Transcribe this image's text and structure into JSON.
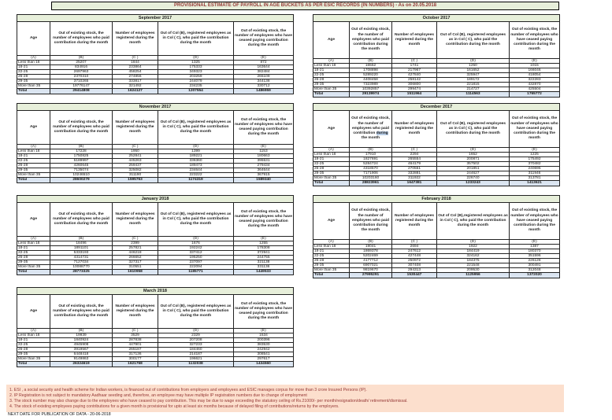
{
  "title": "PROVISIONAL ESTIMATE OF PAYROLL IN AGE BUCKETS AS PER ESIC RECORDS (IN NUMBERS) - As on 20.05.2018",
  "colors": {
    "title_bg": "#e7efda",
    "title_text": "#943634",
    "month_header_bg": "#e7efda",
    "total_row_bg": "#dbe5f1",
    "notes_bg": "#fcdfcd",
    "notes_text": "#953735",
    "selection_highlight": "#b8cce4"
  },
  "tables": [
    {
      "month": "September 2017",
      "headers": [
        "Age",
        "Out of existing stock, the number of employees who paid contribution during the month",
        "Number of employees registered during the month",
        "Out of Col (B), registered employees as in Col ( C), who paid the contribution during the month",
        "Out of existing stock, the number of employees who have ceased paying contribution during the month"
      ],
      "letters": [
        "(A)",
        "(B)",
        "(C )",
        "(D)",
        "(E)"
      ],
      "rows": [
        [
          "Less than 18",
          "25207",
          "1844",
          "1325",
          "872"
        ],
        [
          "18-21",
          "834916",
          "233864",
          "175333",
          "163644"
        ],
        [
          "22-25",
          "2697963",
          "458254",
          "349323",
          "382484"
        ],
        [
          "26-28",
          "2370310",
          "274856",
          "203259",
          "265109"
        ],
        [
          "29-35",
          "3710265",
          "333817",
          "244079",
          "344138"
        ],
        [
          "More than 35",
          "19776147",
          "321492",
          "234235",
          "330712"
        ]
      ],
      "total": [
        "Total",
        "29414808",
        "1624127",
        "1207554",
        "1486959"
      ]
    },
    {
      "month": "October 2017",
      "headers": [
        "Age",
        "Out of existing stock, the number of employees who paid contribution during the month",
        "Number of employees registered during the month",
        "Out of Col (B), registered employees as in Col ( C), who paid the contribution during the month",
        "Out of existing stock, the number of employees who have ceased paying contribution during the month"
      ],
      "letters": [
        "(A)",
        "(B)",
        "(C )",
        "(D)",
        "(E)"
      ],
      "rows": [
        [
          "Less than 18",
          "16552",
          "1741",
          "1250",
          "1015"
        ],
        [
          "18-21",
          "1708898",
          "217967",
          "161652",
          "166046"
        ],
        [
          "22-25",
          "5289220",
          "427840",
          "325947",
          "418054"
        ],
        [
          "26-28",
          "4408458",
          "258142",
          "189172",
          "322283"
        ],
        [
          "29-35",
          "7323989",
          "306800",
          "221815",
          "432870"
        ],
        [
          "More than 35",
          "10392857",
          "299474",
          "214727",
          "425504"
        ]
      ],
      "total": [
        "Total",
        "29139974",
        "1511964",
        "1114563",
        "1765772"
      ]
    },
    {
      "month": "November 2017",
      "headers": [
        "Age",
        "Out of existing stock, the number of employees who paid contribution during the month",
        "Number of employees registered during the month",
        "Out of Col (B), registered employees as in Col ( C), who paid the contribution during the month",
        "Out of existing stock, the number of employees who have ceased paying contribution during the month"
      ],
      "letters": [
        "(A)",
        "(B)",
        "(C )",
        "(D)",
        "(E)"
      ],
      "rows": [
        [
          "Less than 18",
          "17228",
          "1950",
          "1399",
          "1153"
        ],
        [
          "18-21",
          "1750825",
          "252841",
          "189221",
          "180663"
        ],
        [
          "22-25",
          "5189997",
          "445263",
          "336360",
          "395531"
        ],
        [
          "26-28",
          "4260645",
          "259437",
          "189473",
          "279434"
        ],
        [
          "29-35",
          "7135074",
          "325082",
          "234644",
          "364644"
        ],
        [
          "More than 35",
          "10246510",
          "311190",
          "223222",
          "367915"
        ]
      ],
      "total": [
        "Total",
        "28600279",
        "1595763",
        "1174319",
        "1589340"
      ]
    },
    {
      "month": "December 2017",
      "headers": [
        "Age",
        "Out of existing stock, the number of employees who paid contribution during the month",
        "Number of employees registered during the month",
        "Out of Col (B), registered employees as in Col ( C), who paid the contribution during the month",
        "Out of existing stock, the number of employees who have ceased paying contribution during the month"
      ],
      "header_b_parts": {
        "pre": "Out of existing stock, the number of employees who paid contribution ",
        "highlight": "during",
        "post": " the month"
      },
      "letters": [
        "(A)",
        "(B)",
        "(C )",
        "(D)",
        "(E)"
      ],
      "rows": [
        [
          "Less than 18",
          "17910",
          "2294",
          "1652",
          "1225"
        ],
        [
          "18-21",
          "1827691",
          "265554",
          "200871",
          "175492"
        ],
        [
          "22-25",
          "5284724",
          "464179",
          "357502",
          "370482"
        ],
        [
          "26-28",
          "4318570",
          "270551",
          "201851",
          "240695"
        ],
        [
          "29-35",
          "7171906",
          "332881",
          "244627",
          "311946"
        ],
        [
          "More than 35",
          "10203160",
          "311922",
          "226740",
          "313781"
        ]
      ],
      "total": [
        "Total",
        "28823961",
        "1647381",
        "1233243",
        "1413621"
      ]
    },
    {
      "month": "January 2018",
      "headers": [
        "Age",
        "Out of existing stock, the number of employees who paid contribution during the month",
        "Number of employees registered during the month",
        "Out of Col (B), registered employees as in Col ( C), who paid the contribution during the month",
        "Out of existing stock, the number of employees who have ceased paying contribution during the month"
      ],
      "letters": [
        "(A)",
        "(B)",
        "(C )",
        "(D)",
        "(E)"
      ],
      "rows": [
        [
          "Less than 18",
          "18496",
          "2399",
          "1676",
          "1255"
        ],
        [
          "18-21",
          "1891101",
          "257821",
          "192242",
          "178308"
        ],
        [
          "22-25",
          "5333193",
          "446218",
          "337412",
          "372941"
        ],
        [
          "26-28",
          "4314731",
          "266652",
          "195250",
          "244755"
        ],
        [
          "29-35",
          "7127034",
          "327317",
          "237097",
          "321138"
        ],
        [
          "More than 35",
          "10088770",
          "310551",
          "222094",
          "331136"
        ]
      ],
      "total": [
        "Total",
        "28773325",
        "1610958",
        "1185771",
        "1449533"
      ]
    },
    {
      "month": "February 2018",
      "headers": [
        "Age",
        "Out of existing stock, the number of employees who paid contribution during the month",
        "Number of employees registered during the month",
        "Out of Col (B),registered employees as in Col ( C), who paid the contribution during the month",
        "Out of existing stock, the number of employees who have ceased paying contribution during the month"
      ],
      "letters": [
        "(A)",
        "(B)",
        "(C )",
        "(D)",
        "(E)"
      ],
      "rows": [
        [
          "Less than 18",
          "19041",
          "2694",
          "1922",
          "1387"
        ],
        [
          "18-21",
          "1869378",
          "247612",
          "184419",
          "180370"
        ],
        [
          "22-25",
          "5202469",
          "427448",
          "324162",
          "351596"
        ],
        [
          "26-28",
          "4177712",
          "250972",
          "184375",
          "226128"
        ],
        [
          "29-35",
          "6907021",
          "307408",
          "221548",
          "300491"
        ],
        [
          "More than 35",
          "9819670",
          "294313",
          "209530",
          "312048"
        ]
      ],
      "total": [
        "Total",
        "27995291",
        "1530447",
        "1125956",
        "1372020"
      ]
    },
    {
      "month": "March 2018",
      "headers": [
        "Age",
        "Out of existing stock, the number of employees who paid contribution during the month",
        "Number of employees registered during the month",
        "Out of Col (B), registered employees as in Col ( C), who paid the contribution during the month",
        "Out of existing stock, the number of employees who have ceased paying contribution during the month"
      ],
      "letters": [
        "(A)",
        "(B)",
        "(C )",
        "(D)",
        "(E)"
      ],
      "rows": [
        [
          "Less than 18",
          "19939",
          "3529",
          "2329",
          "1534"
        ],
        [
          "18-21",
          "1840924",
          "287838",
          "207208",
          "200396"
        ],
        [
          "22-25",
          "4945908",
          "447901",
          "327233",
          "383530"
        ],
        [
          "26-28",
          "3919567",
          "265187",
          "184460",
          "242942"
        ],
        [
          "29-35",
          "6448418",
          "317136",
          "214187",
          "308541"
        ],
        [
          "More than 35",
          "9149863",
          "300177",
          "196621",
          "297617"
        ]
      ],
      "total": [
        "Total",
        "26324619",
        "1621768",
        "1132038",
        "1434560"
      ]
    }
  ],
  "notes": [
    "1. ESI , a social security and health scheme for Indian workers, is financed out of contributions from employers and employees and ESIC manages corpus for more than 3 crore Insured Persons (IP).",
    "2. IP Registration is not subject to mandatory Aadhaar seeding and, therefore, an employee may have multiple IP registration numbers due to change of employment",
    "3. The stock number may also change due to the employees who have ceased to pay contribution. This may be due to wage exceeding the statutory ceiling of Rs.21000/- per month/resignation/death/ retirement/dismissal.",
    "4. The stock of existing employees paying contributions for a given month is provisional for upto at least six months because of delayed filing of contributions/returns by the employers."
  ],
  "next_date": "NEXT DATE FOR PUBLICATION OF DATA - 20-06-2018"
}
